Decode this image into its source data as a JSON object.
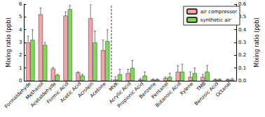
{
  "chart_data": {
    "type": "bar",
    "categories": [
      "Formaldehyde",
      "Methanol",
      "Acetaldehyde",
      "Formic Acid",
      "Acetic Acid",
      "Acrolein",
      "Acetone",
      "MVK",
      "Acrylic Acid",
      "Propionic Acid",
      "Benzene",
      "Pentanal",
      "Butanoic Acid",
      "Xylene",
      "TMB",
      "Benzoic Acid",
      "Octanal"
    ],
    "y_label": "Mixing ratio (ppb)",
    "y2_label": "Mixing ratio (ppb)",
    "ylim": [
      0,
      6
    ],
    "yticks": [
      0,
      1,
      2,
      3,
      4,
      5,
      6
    ],
    "y2lim": [
      0,
      0.6
    ],
    "y2ticks": [
      {
        "value": 0,
        "label": "0.0"
      },
      0.1,
      0.2,
      0.3,
      0.4,
      0.5,
      0.6
    ],
    "legend": "top-right",
    "series": [
      {
        "name": "air compressor",
        "color": "#f4a3a8",
        "values": [
          3.0,
          5.2,
          0.95,
          5.1,
          0.65,
          4.9,
          2.4,
          null,
          null,
          null,
          null,
          null,
          null,
          null,
          null,
          null,
          null
        ],
        "errors": [
          0.5,
          0.5,
          0.1,
          0.3,
          0.05,
          1.1,
          0.8,
          null,
          null,
          null,
          null,
          null,
          null,
          null,
          null,
          null,
          null
        ]
      },
      {
        "name": "synthetic air",
        "color": "#7ed957",
        "values": [
          3.2,
          2.8,
          0.45,
          5.6,
          0.4,
          3.0,
          3.1,
          null,
          null,
          null,
          null,
          null,
          null,
          null,
          null,
          null,
          null
        ],
        "errors": [
          0.8,
          0.2,
          0.05,
          0.3,
          0.1,
          0.9,
          0.9,
          null,
          null,
          null,
          null,
          null,
          null,
          null,
          null,
          null,
          null
        ]
      },
      {
        "name": "air compressor",
        "color": "#f4a3a8",
        "axis": "y2",
        "values": [
          null,
          null,
          null,
          null,
          null,
          null,
          null,
          0.01,
          0.06,
          0.01,
          0.01,
          0.02,
          0.07,
          0.03,
          0.03,
          0.01,
          0.01
        ],
        "errors": [
          null,
          null,
          null,
          null,
          null,
          null,
          null,
          0.02,
          0.03,
          0.01,
          0.005,
          0.01,
          0.05,
          0.04,
          0.02,
          0.005,
          0.005
        ]
      },
      {
        "name": "synthetic air",
        "color": "#7ed957",
        "axis": "y2",
        "values": [
          null,
          null,
          null,
          null,
          null,
          null,
          null,
          0.05,
          0.1,
          0.04,
          0.01,
          0.03,
          0.07,
          0.06,
          0.07,
          0.01,
          0.01
        ],
        "errors": [
          null,
          null,
          null,
          null,
          null,
          null,
          null,
          0.04,
          0.06,
          0.03,
          0.005,
          0.03,
          0.06,
          0.04,
          0.05,
          0.005,
          0.01
        ]
      }
    ]
  }
}
